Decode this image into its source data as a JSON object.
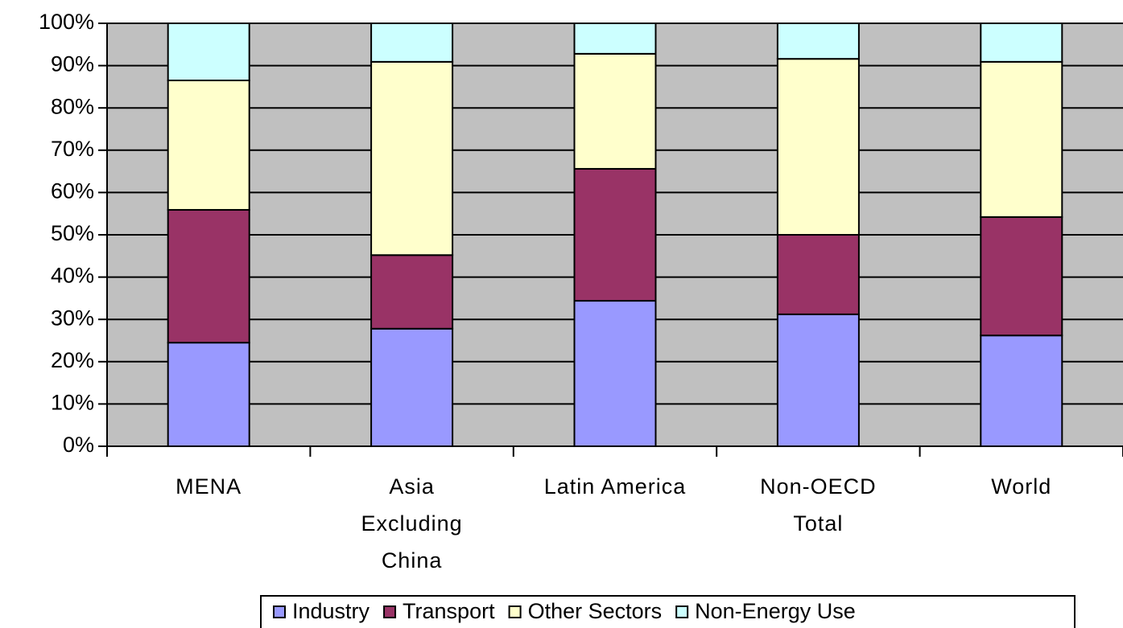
{
  "chart_data": {
    "type": "stacked_bar",
    "categories": [
      "MENA",
      "Asia\nExcluding\nChina",
      "Latin America",
      "Non-OECD\nTotal",
      "World"
    ],
    "series": [
      {
        "name": "Industry",
        "color": "#9999ff",
        "values": [
          24.5,
          27.8,
          34.4,
          31.2,
          26.2
        ]
      },
      {
        "name": "Transport",
        "color": "#993366",
        "values": [
          31.4,
          17.4,
          31.2,
          18.8,
          28.0
        ]
      },
      {
        "name": "Other Sectors",
        "color": "#ffffcc",
        "values": [
          30.6,
          45.7,
          27.2,
          41.6,
          36.7
        ]
      },
      {
        "name": "Non-Energy Use",
        "color": "#ccffff",
        "values": [
          13.5,
          9.1,
          7.2,
          8.4,
          9.1
        ]
      }
    ],
    "ylim": [
      0,
      100
    ],
    "yticks": [
      {
        "value": 0,
        "label": "0%"
      },
      {
        "value": 10,
        "label": "10%"
      },
      {
        "value": 20,
        "label": "20%"
      },
      {
        "value": 30,
        "label": "30%"
      },
      {
        "value": 40,
        "label": "40%"
      },
      {
        "value": 50,
        "label": "50%"
      },
      {
        "value": 60,
        "label": "60%"
      },
      {
        "value": 70,
        "label": "70%"
      },
      {
        "value": 80,
        "label": "80%"
      },
      {
        "value": 90,
        "label": "90%"
      },
      {
        "value": 100,
        "label": "100%"
      }
    ],
    "grid": true,
    "plot_background": "#c0c0c0",
    "legend": "bottom"
  }
}
